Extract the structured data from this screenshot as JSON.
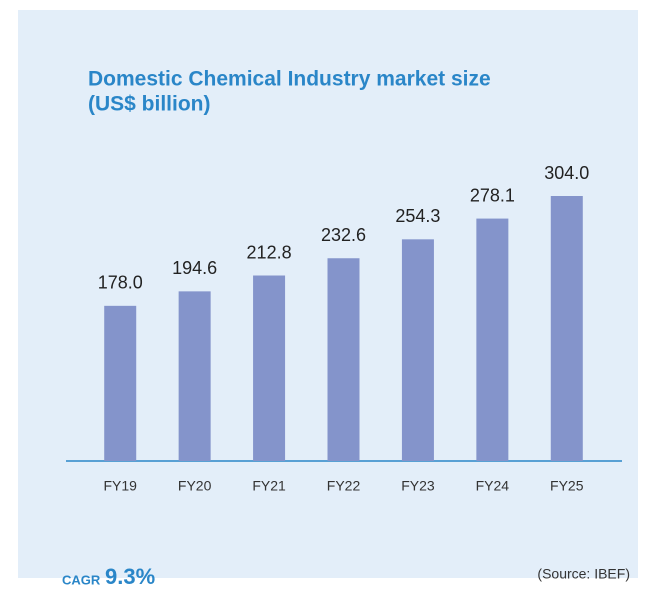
{
  "chart_data": {
    "type": "bar",
    "title_lines": [
      "Domestic Chemical Industry market size",
      "(US$ billion)"
    ],
    "categories": [
      "FY19",
      "FY20",
      "FY21",
      "FY22",
      "FY23",
      "FY24",
      "FY25"
    ],
    "values": [
      178,
      194.6,
      212.8,
      232.6,
      254.3,
      278.1,
      304
    ],
    "value_labels": [
      "178.0",
      "194.6",
      "212.8",
      "232.6",
      "254.3",
      "278.1",
      "304.0"
    ],
    "color": "#8494cb",
    "cagr_label": "CAGR",
    "cagr_value": "9.3%",
    "source": "(Source: IBEF)"
  }
}
